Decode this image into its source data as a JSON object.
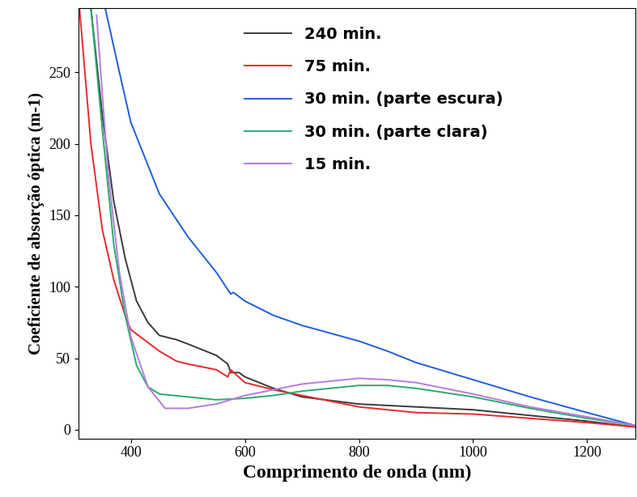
{
  "chart_data": {
    "type": "line",
    "x_label": "Comprimento de onda (nm)",
    "y_label": "Coeficiente de absorção óptica (m-1)",
    "xlim": [
      308,
      1284
    ],
    "xticks": [
      400,
      600,
      800,
      1000,
      1200
    ],
    "ylim": [
      -6,
      295
    ],
    "yticks": [
      0,
      50,
      100,
      150,
      200,
      250
    ],
    "legend": "upper center",
    "series": [
      {
        "name": "240 min.",
        "color": "#3a3a3a",
        "x": [
          330,
          350,
          370,
          390,
          410,
          430,
          450,
          480,
          500,
          550,
          570,
          575,
          590,
          600,
          650,
          700,
          800,
          900,
          1000,
          1100,
          1200,
          1284
        ],
        "values": [
          295,
          220,
          160,
          120,
          90,
          75,
          66,
          63,
          60,
          52,
          46,
          40,
          40,
          37,
          29,
          23,
          18,
          16,
          14,
          10,
          6,
          2
        ]
      },
      {
        "name": "75 min.",
        "color": "#e8292c",
        "x": [
          310,
          330,
          350,
          370,
          390,
          400,
          450,
          480,
          500,
          550,
          570,
          575,
          600,
          650,
          700,
          800,
          900,
          1000,
          1100,
          1200,
          1284
        ],
        "values": [
          295,
          200,
          140,
          105,
          80,
          70,
          55,
          48,
          46,
          42,
          37,
          42,
          33,
          28,
          24,
          16,
          12,
          11,
          8,
          5,
          2
        ]
      },
      {
        "name": "30 min. (parte escura)",
        "color": "#1f5fd6",
        "x": [
          355,
          380,
          400,
          450,
          500,
          550,
          575,
          580,
          600,
          650,
          700,
          800,
          850,
          900,
          1000,
          1100,
          1200,
          1284
        ],
        "values": [
          295,
          250,
          215,
          165,
          135,
          110,
          95,
          96,
          90,
          80,
          73,
          62,
          55,
          47,
          35,
          23,
          12,
          3
        ]
      },
      {
        "name": "30 min. (parte clara)",
        "color": "#2ca870",
        "x": [
          330,
          350,
          370,
          390,
          410,
          430,
          450,
          500,
          550,
          600,
          650,
          700,
          800,
          850,
          900,
          1000,
          1100,
          1200,
          1284
        ],
        "values": [
          295,
          210,
          130,
          80,
          45,
          30,
          25,
          23,
          21,
          22,
          24,
          27,
          31,
          31,
          29,
          23,
          15,
          8,
          3
        ]
      },
      {
        "name": "15 min.",
        "color": "#b57cdb",
        "x": [
          340,
          360,
          380,
          400,
          430,
          460,
          500,
          550,
          600,
          650,
          700,
          800,
          850,
          900,
          1000,
          1100,
          1200,
          1284
        ],
        "values": [
          290,
          180,
          110,
          65,
          30,
          15,
          15,
          18,
          24,
          28,
          32,
          36,
          35,
          33,
          25,
          16,
          9,
          3
        ]
      }
    ]
  }
}
